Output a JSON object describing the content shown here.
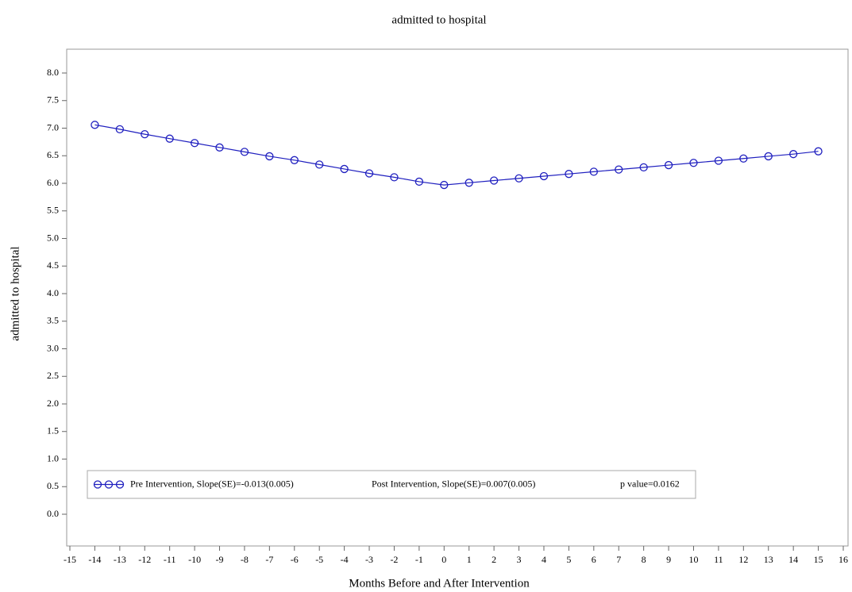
{
  "chart_data": {
    "type": "line",
    "title": "admitted to hospital",
    "xlabel": "Months Before and After Intervention",
    "ylabel": "admitted to hospital",
    "x": [
      -14,
      -13,
      -12,
      -11,
      -10,
      -9,
      -8,
      -7,
      -6,
      -5,
      -4,
      -3,
      -2,
      -1,
      0,
      1,
      2,
      3,
      4,
      5,
      6,
      7,
      8,
      9,
      10,
      11,
      12,
      13,
      14,
      15
    ],
    "series": [
      {
        "name": "Pre Intervention, Slope(SE)=-0.013(0.005)",
        "color": "#1f1fbf",
        "values": [
          7.06,
          6.98,
          6.89,
          6.81,
          6.73,
          6.65,
          6.57,
          6.49,
          6.42,
          6.34,
          6.26,
          6.18,
          6.11,
          6.03,
          5.97,
          6.01,
          6.05,
          6.09,
          6.13,
          6.17,
          6.21,
          6.25,
          6.29,
          6.33,
          6.37,
          6.41,
          6.45,
          6.49,
          6.53,
          6.58
        ]
      }
    ],
    "annotations": [
      "Post Intervention, Slope(SE)=0.007(0.005)",
      "p value=0.0162"
    ],
    "xlim": [
      -15,
      16
    ],
    "xticks": [
      -15,
      -14,
      -13,
      -12,
      -11,
      -10,
      -9,
      -8,
      -7,
      -6,
      -5,
      -4,
      -3,
      -2,
      -1,
      0,
      1,
      2,
      3,
      4,
      5,
      6,
      7,
      8,
      9,
      10,
      11,
      12,
      13,
      14,
      15,
      16
    ],
    "ylim": [
      0,
      8
    ],
    "yticks": [
      {
        "value": 0,
        "label": "0.0"
      },
      0.5,
      {
        "value": 1,
        "label": "1.0"
      },
      1.5,
      {
        "value": 2,
        "label": "2.0"
      },
      2.5,
      {
        "value": 3,
        "label": "3.0"
      },
      3.5,
      {
        "value": 4,
        "label": "4.0"
      },
      4.5,
      {
        "value": 5,
        "label": "5.0"
      },
      5.5,
      {
        "value": 6,
        "label": "6.0"
      },
      6.5,
      {
        "value": 7,
        "label": "7.0"
      },
      7.5,
      {
        "value": 8,
        "label": "8.0"
      }
    ],
    "legend": "bottom-left"
  }
}
